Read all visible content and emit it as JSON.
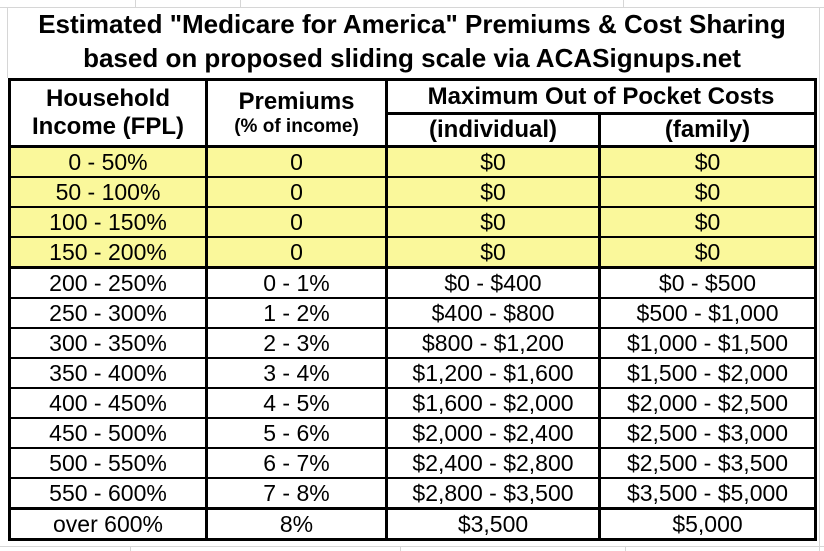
{
  "title": {
    "line1": "Estimated \"Medicare for America\" Premiums & Cost Sharing",
    "line2": "based on proposed sliding scale via ACASignups.net"
  },
  "table": {
    "header": {
      "income_line1": "Household",
      "income_line2": "Income (FPL)",
      "premiums_line1": "Premiums",
      "premiums_line2": "(% of income)",
      "oop_group": "Maximum Out of Pocket Costs",
      "individual": "(individual)",
      "family": "(family)"
    }
  },
  "colors": {
    "highlight_yellow": "#faf89b",
    "border_black": "#000000",
    "gridline_gray": "#d6d6d6",
    "background": "#ffffff"
  },
  "chart_data": {
    "type": "table",
    "title": "Estimated \"Medicare for America\" Premiums & Cost Sharing based on proposed sliding scale via ACASignups.net",
    "columns": [
      "Household Income (FPL)",
      "Premiums (% of income)",
      "Maximum Out of Pocket Costs (individual)",
      "Maximum Out of Pocket Costs (family)"
    ],
    "rows": [
      [
        "0 - 50%",
        "0",
        "$0",
        "$0"
      ],
      [
        "50 - 100%",
        "0",
        "$0",
        "$0"
      ],
      [
        "100 - 150%",
        "0",
        "$0",
        "$0"
      ],
      [
        "150 - 200%",
        "0",
        "$0",
        "$0"
      ],
      [
        "200 - 250%",
        "0 - 1%",
        "$0 - $400",
        "$0 - $500"
      ],
      [
        "250 - 300%",
        "1 - 2%",
        "$400 - $800",
        "$500 - $1,000"
      ],
      [
        "300 - 350%",
        "2 - 3%",
        "$800 - $1,200",
        "$1,000 - $1,500"
      ],
      [
        "350 - 400%",
        "3 - 4%",
        "$1,200 - $1,600",
        "$1,500 - $2,000"
      ],
      [
        "400 - 450%",
        "4 - 5%",
        "$1,600 - $2,000",
        "$2,000 - $2,500"
      ],
      [
        "450 - 500%",
        "5 - 6%",
        "$2,000 - $2,400",
        "$2,500 - $3,000"
      ],
      [
        "500 - 550%",
        "6 - 7%",
        "$2,400 - $2,800",
        "$2,500 - $3,500"
      ],
      [
        "550 - 600%",
        "7 - 8%",
        "$2,800 - $3,500",
        "$3,500 - $5,000"
      ],
      [
        "over 600%",
        "8%",
        "$3,500",
        "$5,000"
      ]
    ],
    "highlighted_row_indices": [
      0,
      1,
      2,
      3
    ],
    "section_break_row_indices": [
      4,
      12
    ],
    "layout": "header title above bordered table; first four income tiers highlighted yellow; thick rules separate $0 tier block and the over-600% row"
  }
}
